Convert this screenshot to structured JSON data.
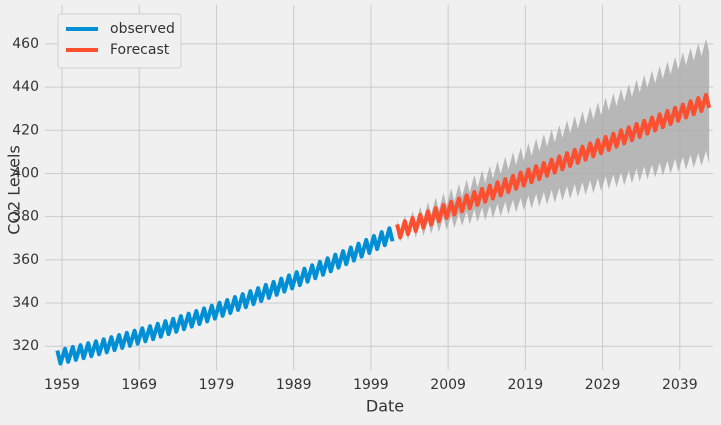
{
  "chart_data": {
    "type": "line",
    "xlabel": "Date",
    "ylabel": "CO2 Levels",
    "xlim": [
      1956.8,
      2043.3
    ],
    "ylim": [
      309,
      478
    ],
    "xticks": [
      1959,
      1969,
      1979,
      1989,
      1999,
      2009,
      2019,
      2029,
      2039
    ],
    "yticks": [
      320,
      340,
      360,
      380,
      400,
      420,
      440,
      460
    ],
    "grid": true,
    "legend": "upper left",
    "series": [
      {
        "name": "observed",
        "color": "#008fd5",
        "x": [
          1958.4,
          1958.8,
          1959.4,
          1959.8,
          1960.4,
          1960.8,
          1961.4,
          1961.8,
          1962.4,
          1962.8,
          1963.4,
          1963.8,
          1964.4,
          1964.8,
          1965.4,
          1965.8,
          1966.4,
          1966.8,
          1967.4,
          1967.8,
          1968.4,
          1968.8,
          1969.4,
          1969.8,
          1970.4,
          1970.8,
          1971.4,
          1971.8,
          1972.4,
          1972.8,
          1973.4,
          1973.8,
          1974.4,
          1974.8,
          1975.4,
          1975.8,
          1976.4,
          1976.8,
          1977.4,
          1977.8,
          1978.4,
          1978.8,
          1979.4,
          1979.8,
          1980.4,
          1980.8,
          1981.4,
          1981.8,
          1982.4,
          1982.8,
          1983.4,
          1983.8,
          1984.4,
          1984.8,
          1985.4,
          1985.8,
          1986.4,
          1986.8,
          1987.4,
          1987.8,
          1988.4,
          1988.8,
          1989.4,
          1989.8,
          1990.4,
          1990.8,
          1991.4,
          1991.8,
          1992.4,
          1992.8,
          1993.4,
          1993.8,
          1994.4,
          1994.8,
          1995.4,
          1995.8,
          1996.4,
          1996.8,
          1997.4,
          1997.8,
          1998.4,
          1998.8,
          1999.4,
          1999.8,
          2000.4,
          2000.8,
          2001.4,
          2001.8
        ],
        "values": [
          318.0,
          312.0,
          318.8,
          312.8,
          319.7,
          313.7,
          320.5,
          314.5,
          321.4,
          315.4,
          322.3,
          316.3,
          323.2,
          317.2,
          324.2,
          318.2,
          325.2,
          319.2,
          326.2,
          320.2,
          327.2,
          321.2,
          328.3,
          322.3,
          329.3,
          323.3,
          330.4,
          324.4,
          331.6,
          325.6,
          332.7,
          326.7,
          333.9,
          327.9,
          335.1,
          329.1,
          336.3,
          330.3,
          337.5,
          331.5,
          338.8,
          332.8,
          340.1,
          334.1,
          341.4,
          335.4,
          342.8,
          336.8,
          344.1,
          338.1,
          345.5,
          339.5,
          346.9,
          340.9,
          348.4,
          342.4,
          349.8,
          343.8,
          351.3,
          345.3,
          352.8,
          346.8,
          354.3,
          348.3,
          355.9,
          349.9,
          357.5,
          351.5,
          359.1,
          353.1,
          360.7,
          354.7,
          362.4,
          356.4,
          364.0,
          358.0,
          365.7,
          359.7,
          367.5,
          361.5,
          369.2,
          363.2,
          371.0,
          365.0,
          372.8,
          366.8,
          374.6,
          368.6
        ]
      },
      {
        "name": "Forecast",
        "color": "#fc4f30",
        "band_color": "#a9a9a9",
        "x": [
          2002.4,
          2002.8,
          2003.4,
          2003.8,
          2004.4,
          2004.8,
          2005.4,
          2005.8,
          2006.4,
          2006.8,
          2007.4,
          2007.8,
          2008.4,
          2008.8,
          2009.4,
          2009.8,
          2010.4,
          2010.8,
          2011.4,
          2011.8,
          2012.4,
          2012.8,
          2013.4,
          2013.8,
          2014.4,
          2014.8,
          2015.4,
          2015.8,
          2016.4,
          2016.8,
          2017.4,
          2017.8,
          2018.4,
          2018.8,
          2019.4,
          2019.8,
          2020.4,
          2020.8,
          2021.4,
          2021.8,
          2022.4,
          2022.8,
          2023.4,
          2023.8,
          2024.4,
          2024.8,
          2025.4,
          2025.8,
          2026.4,
          2026.8,
          2027.4,
          2027.8,
          2028.4,
          2028.8,
          2029.4,
          2029.8,
          2030.4,
          2030.8,
          2031.4,
          2031.8,
          2032.4,
          2032.8,
          2033.4,
          2033.8,
          2034.4,
          2034.8,
          2035.4,
          2035.8,
          2036.4,
          2036.8,
          2037.4,
          2037.8,
          2038.4,
          2038.8,
          2039.4,
          2039.8,
          2040.4,
          2040.8,
          2041.4,
          2041.8,
          2042.4,
          2042.8
        ],
        "values": [
          376.4,
          370.4,
          377.9,
          371.9,
          379.4,
          373.4,
          380.9,
          374.9,
          382.4,
          376.4,
          383.9,
          377.9,
          385.4,
          379.4,
          386.9,
          380.9,
          388.4,
          382.4,
          389.9,
          383.9,
          391.4,
          385.4,
          392.9,
          386.9,
          394.4,
          388.4,
          395.9,
          389.9,
          397.4,
          391.4,
          398.9,
          392.9,
          400.4,
          394.4,
          401.9,
          395.9,
          403.4,
          397.4,
          404.9,
          398.9,
          406.4,
          400.4,
          407.9,
          401.9,
          409.4,
          403.4,
          410.9,
          404.9,
          412.4,
          406.4,
          413.9,
          407.9,
          415.4,
          409.4,
          416.9,
          410.9,
          418.4,
          412.4,
          419.9,
          413.9,
          421.4,
          415.4,
          422.9,
          416.9,
          424.4,
          418.4,
          425.9,
          419.9,
          427.4,
          421.4,
          428.9,
          422.9,
          430.4,
          424.4,
          431.9,
          425.9,
          433.4,
          427.4,
          434.9,
          428.9,
          436.4,
          430.4
        ],
        "upper": [
          378.4,
          372.4,
          380.5,
          374.5,
          382.6,
          376.6,
          384.7,
          378.7,
          386.8,
          380.8,
          388.9,
          382.9,
          391.0,
          385.0,
          393.1,
          387.1,
          395.2,
          389.2,
          397.3,
          391.3,
          399.4,
          393.4,
          401.5,
          395.5,
          403.6,
          397.6,
          405.7,
          399.7,
          407.8,
          401.8,
          409.9,
          403.9,
          412.0,
          406.0,
          414.1,
          408.1,
          416.2,
          410.2,
          418.3,
          412.3,
          420.4,
          414.4,
          422.5,
          416.5,
          424.6,
          418.6,
          426.7,
          420.7,
          428.8,
          422.8,
          430.9,
          424.9,
          433.0,
          427.0,
          435.1,
          429.1,
          437.2,
          431.2,
          439.3,
          433.3,
          441.4,
          435.4,
          443.5,
          437.5,
          445.6,
          439.6,
          447.7,
          441.7,
          449.8,
          443.8,
          451.9,
          445.9,
          454.0,
          448.0,
          456.1,
          450.1,
          458.2,
          452.2,
          460.3,
          454.3,
          462.4,
          456.4
        ],
        "lower": [
          374.4,
          368.4,
          375.3,
          369.3,
          376.2,
          370.2,
          377.1,
          371.1,
          378.0,
          372.0,
          378.9,
          372.9,
          379.8,
          373.8,
          380.7,
          374.7,
          381.6,
          375.6,
          382.5,
          376.5,
          383.4,
          377.4,
          384.3,
          378.3,
          385.2,
          379.2,
          386.1,
          380.1,
          387.0,
          381.0,
          387.9,
          381.9,
          388.8,
          382.8,
          389.7,
          383.7,
          390.6,
          384.6,
          391.5,
          385.5,
          392.4,
          386.4,
          393.3,
          387.3,
          394.2,
          388.2,
          395.1,
          389.1,
          396.0,
          390.0,
          396.9,
          390.9,
          397.8,
          391.8,
          398.7,
          392.7,
          399.6,
          393.6,
          400.5,
          394.5,
          401.4,
          395.4,
          402.3,
          396.3,
          403.2,
          397.2,
          404.1,
          398.1,
          405.0,
          399.0,
          405.9,
          399.9,
          406.8,
          400.8,
          407.7,
          401.7,
          408.6,
          402.6,
          409.5,
          403.5,
          410.4,
          404.4
        ]
      }
    ]
  }
}
